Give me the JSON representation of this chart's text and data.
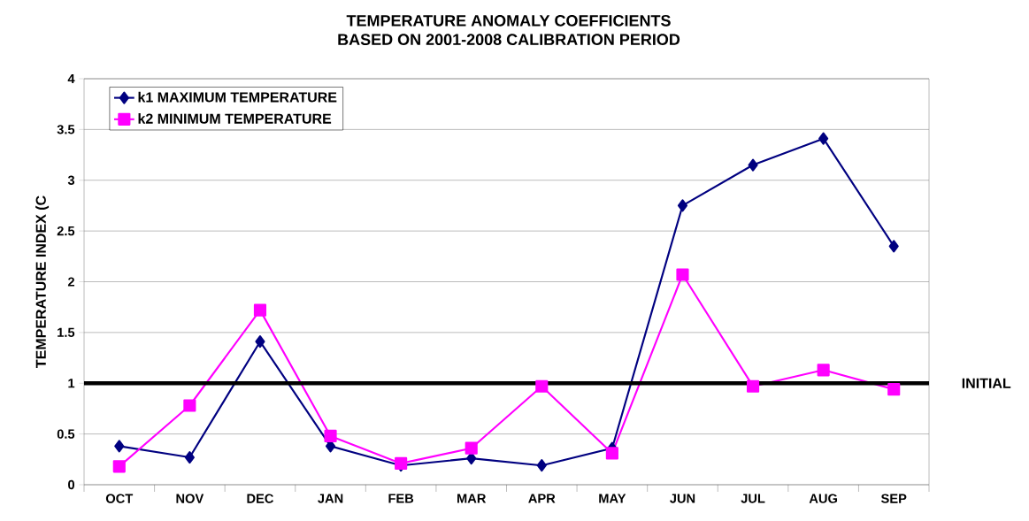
{
  "chart_data": {
    "type": "line",
    "title": "TEMPERATURE ANOMALY COEFFICIENTS",
    "subtitle": "BASED ON 2001-2008 CALIBRATION PERIOD",
    "ylabel": "TEMPERATURE INDEX (C",
    "categories": [
      "OCT",
      "NOV",
      "DEC",
      "JAN",
      "FEB",
      "MAR",
      "APR",
      "MAY",
      "JUN",
      "JUL",
      "AUG",
      "SEP"
    ],
    "series": [
      {
        "name": "k1  MAXIMUM TEMPERATURE",
        "color": "#000080",
        "marker": "diamond",
        "values": [
          0.38,
          0.27,
          1.41,
          0.38,
          0.19,
          0.26,
          0.19,
          0.36,
          2.75,
          3.15,
          3.41,
          2.35
        ]
      },
      {
        "name": "k2  MINIMUM TEMPERATURE",
        "color": "#ff00ff",
        "marker": "square",
        "values": [
          0.18,
          0.78,
          1.72,
          0.48,
          0.21,
          0.36,
          0.97,
          0.31,
          2.07,
          0.97,
          1.13,
          0.94
        ]
      }
    ],
    "ylim": [
      0,
      4
    ],
    "yticks": [
      0,
      0.5,
      1,
      1.5,
      2,
      2.5,
      3,
      3.5,
      4
    ],
    "grid": "y",
    "legend": "top left",
    "ref_lines": [
      {
        "axis": "y",
        "value": 1,
        "label": "INITIAL",
        "color": "#000000"
      }
    ]
  }
}
